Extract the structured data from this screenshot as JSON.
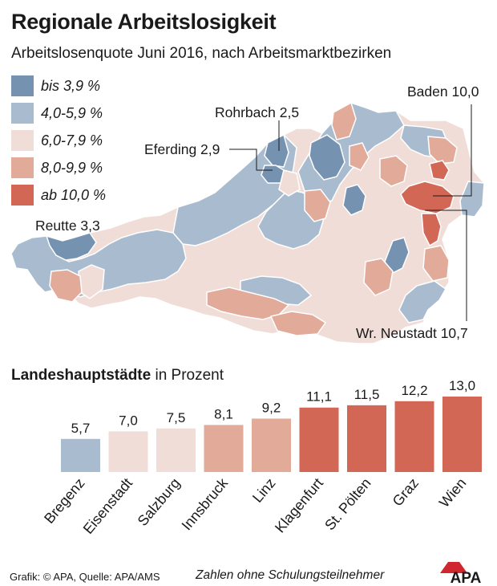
{
  "header": {
    "title": "Regionale Arbeitslosigkeit",
    "subtitle": "Arbeitslosenquote Juni 2016, nach Arbeitsmarktbezirken"
  },
  "legend": {
    "items": [
      {
        "label": "bis 3,9 %",
        "color": "#7593b1"
      },
      {
        "label": "4,0-5,9 %",
        "color": "#a9bccf"
      },
      {
        "label": "6,0-7,9 %",
        "color": "#f1ddd8"
      },
      {
        "label": "8,0-9,9 %",
        "color": "#e2aa98"
      },
      {
        "label": "ab 10,0 %",
        "color": "#d36756"
      }
    ]
  },
  "map": {
    "callouts": {
      "baden": "Baden 10,0",
      "rohrbach": "Rohrbach 2,5",
      "eferding": "Eferding 2,9",
      "reutte": "Reutte 3,3",
      "wr_neustadt": "Wr. Neustadt 10,7"
    }
  },
  "capitals": {
    "heading_bold": "Landeshauptstädte",
    "heading_rest": " in Prozent"
  },
  "chart_data": {
    "type": "bar",
    "title": "Landeshauptstädte in Prozent",
    "categories": [
      "Bregenz",
      "Eisenstadt",
      "Salzburg",
      "Innsbruck",
      "Linz",
      "Klagenfurt",
      "St. Pölten",
      "Graz",
      "Wien"
    ],
    "values": [
      5.7,
      7.0,
      7.5,
      8.1,
      9.2,
      11.1,
      11.5,
      12.2,
      13.0
    ],
    "value_labels": [
      "5,7",
      "7,0",
      "7,5",
      "8,1",
      "9,2",
      "11,1",
      "11,5",
      "12,2",
      "13,0"
    ],
    "bar_colors": [
      "#a9bccf",
      "#f1ddd8",
      "#f1ddd8",
      "#e2aa98",
      "#e2aa98",
      "#d36756",
      "#d36756",
      "#d36756",
      "#d36756"
    ],
    "ylim": [
      0,
      13
    ],
    "grid": false
  },
  "footer": {
    "source": "Grafik: © APA, Quelle: APA/AMS",
    "note": "Zahlen ohne Schulungsteilnehmer",
    "logo_text": "APA"
  }
}
